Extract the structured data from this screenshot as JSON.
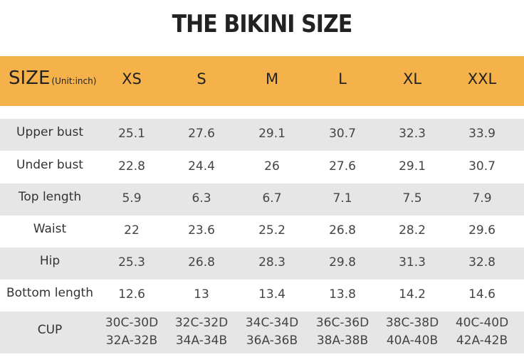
{
  "title": "THE BIKINI SIZE",
  "header": {
    "label": "SIZE",
    "unit": "(Unit:inch)",
    "sizes": [
      "XS",
      "S",
      "M",
      "L",
      "XL",
      "XXL"
    ]
  },
  "table": {
    "rows": [
      {
        "label": "Upper bust",
        "values": [
          25.1,
          27.6,
          29.1,
          30.7,
          32.3,
          33.9
        ]
      },
      {
        "label": "Under bust",
        "values": [
          22.8,
          24.4,
          26,
          27.6,
          29.1,
          30.7
        ]
      },
      {
        "label": "Top length",
        "values": [
          5.9,
          6.3,
          6.7,
          7.1,
          7.5,
          7.9
        ]
      },
      {
        "label": "Waist",
        "values": [
          22,
          23.6,
          25.2,
          26.8,
          28.2,
          29.6
        ]
      },
      {
        "label": "Hip",
        "values": [
          25.3,
          26.8,
          28.3,
          29.8,
          31.3,
          32.8
        ]
      },
      {
        "label": "Bottom length",
        "values": [
          12.6,
          13,
          13.4,
          13.8,
          14.2,
          14.6
        ]
      },
      {
        "label": "CUP",
        "values": [
          [
            "30C-30D",
            "32A-32B"
          ],
          [
            "32C-32D",
            "34A-34B"
          ],
          [
            "34C-34D",
            "36A-36B"
          ],
          [
            "36C-36D",
            "38A-38B"
          ],
          [
            "38C-38D",
            "40A-40B"
          ],
          [
            "40C-40D",
            "42A-42B"
          ]
        ]
      }
    ]
  }
}
